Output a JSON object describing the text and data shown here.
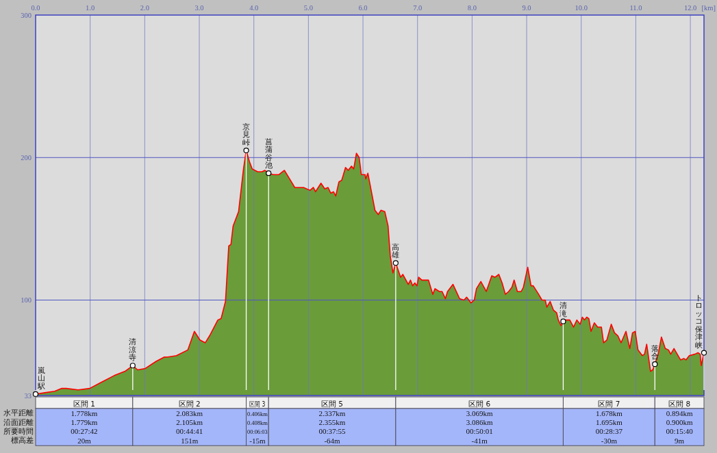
{
  "chart_data": {
    "type": "area",
    "xlabel": "[km]",
    "xlim": [
      0,
      12.25
    ],
    "ylim": [
      33,
      300
    ],
    "xticks": [
      {
        "value": 0,
        "label": "0.0"
      },
      {
        "value": 1,
        "label": "1.0"
      },
      {
        "value": 2,
        "label": "2.0"
      },
      {
        "value": 3,
        "label": "3.0"
      },
      {
        "value": 4,
        "label": "4.0"
      },
      {
        "value": 5,
        "label": "5.0"
      },
      {
        "value": 6,
        "label": "6.0"
      },
      {
        "value": 7,
        "label": "7.0"
      },
      {
        "value": 8,
        "label": "8.0"
      },
      {
        "value": 9,
        "label": "9.0"
      },
      {
        "value": 10,
        "label": "10.0"
      },
      {
        "value": 11,
        "label": "11.0"
      },
      {
        "value": 12,
        "label": "12.0"
      }
    ],
    "yticks": [
      33,
      100,
      200,
      300
    ],
    "grid": true,
    "x": [
      0,
      0.17,
      0.35,
      0.48,
      0.56,
      0.78,
      0.99,
      1.19,
      1.44,
      1.64,
      1.78,
      1.87,
      2.01,
      2.21,
      2.36,
      2.42,
      2.58,
      2.79,
      2.91,
      3.01,
      3.11,
      3.19,
      3.34,
      3.4,
      3.48,
      3.54,
      3.58,
      3.62,
      3.72,
      3.81,
      3.86,
      3.92,
      3.97,
      4.07,
      4.15,
      4.2,
      4.27,
      4.36,
      4.46,
      4.56,
      4.64,
      4.75,
      4.91,
      5.03,
      5.09,
      5.13,
      5.23,
      5.3,
      5.36,
      5.41,
      5.46,
      5.5,
      5.56,
      5.61,
      5.68,
      5.73,
      5.79,
      5.83,
      5.88,
      5.93,
      5.97,
      6.04,
      6.05,
      6.09,
      6.16,
      6.22,
      6.28,
      6.33,
      6.4,
      6.46,
      6.5,
      6.55,
      6.6,
      6.69,
      6.73,
      6.83,
      6.87,
      6.91,
      6.95,
      6.99,
      7.02,
      7.08,
      7.2,
      7.28,
      7.32,
      7.4,
      7.45,
      7.51,
      7.55,
      7.65,
      7.77,
      7.85,
      7.9,
      7.98,
      8.04,
      8.08,
      8.16,
      8.26,
      8.36,
      8.42,
      8.49,
      8.55,
      8.61,
      8.67,
      8.73,
      8.77,
      8.83,
      8.9,
      8.94,
      9.02,
      9.08,
      9.12,
      9.22,
      9.28,
      9.34,
      9.37,
      9.43,
      9.49,
      9.55,
      9.58,
      9.63,
      9.67,
      9.71,
      9.79,
      9.86,
      9.92,
      9.98,
      10.02,
      10.06,
      10.1,
      10.14,
      10.18,
      10.24,
      10.3,
      10.37,
      10.41,
      10.47,
      10.55,
      10.61,
      10.67,
      10.73,
      10.82,
      10.89,
      10.94,
      10.99,
      11.04,
      11.12,
      11.16,
      11.2,
      11.27,
      11.31,
      11.35,
      11.41,
      11.47,
      11.54,
      11.6,
      11.64,
      11.7,
      11.76,
      11.82,
      11.88,
      11.92,
      11.98,
      12.08,
      12.14,
      12.18,
      12.2,
      12.25
    ],
    "series": [
      {
        "color": "#6a9c3a",
        "values": [
          34,
          35,
          36,
          38,
          38,
          37,
          38,
          42,
          47,
          50,
          54,
          51,
          52,
          57,
          60,
          60,
          61,
          65,
          78,
          72,
          70,
          75,
          86,
          87,
          99,
          138,
          139,
          152,
          162,
          192,
          205,
          197,
          192,
          190,
          190,
          191,
          189,
          188,
          188,
          191,
          186,
          179,
          179,
          177,
          179,
          176,
          182,
          178,
          179,
          175,
          176,
          173,
          183,
          184,
          193,
          191,
          194,
          192,
          203,
          200,
          188,
          188,
          185,
          189,
          175,
          163,
          160,
          163,
          162,
          152,
          131,
          119,
          126,
          116,
          118,
          111,
          114,
          110,
          112,
          110,
          116,
          114,
          114,
          104,
          108,
          106,
          106,
          101,
          106,
          111,
          101,
          100,
          102,
          98,
          100,
          108,
          113,
          106,
          117,
          116,
          118,
          112,
          104,
          106,
          109,
          114,
          106,
          106,
          109,
          123,
          110,
          110,
          104,
          100,
          100,
          95,
          99,
          93,
          91,
          86,
          82,
          85,
          86,
          86,
          81,
          86,
          83,
          88,
          86,
          88,
          87,
          78,
          84,
          81,
          81,
          70,
          72,
          83,
          77,
          75,
          70,
          78,
          66,
          77,
          78,
          65,
          61,
          62,
          69,
          50,
          51,
          55,
          62,
          74,
          66,
          65,
          62,
          66,
          62,
          58,
          59,
          58,
          61,
          62,
          63,
          62,
          54,
          63
        ]
      },
      {
        "type": "line",
        "color": "#ff0000",
        "values": [
          34,
          35,
          36,
          38,
          38,
          37,
          38,
          42,
          47,
          50,
          54,
          51,
          52,
          57,
          60,
          60,
          61,
          65,
          78,
          72,
          70,
          75,
          86,
          87,
          99,
          138,
          139,
          152,
          162,
          192,
          205,
          197,
          192,
          190,
          190,
          191,
          189,
          188,
          188,
          191,
          186,
          179,
          179,
          177,
          179,
          176,
          182,
          178,
          179,
          175,
          176,
          173,
          183,
          184,
          193,
          191,
          194,
          192,
          203,
          200,
          188,
          188,
          185,
          189,
          175,
          163,
          160,
          163,
          162,
          152,
          131,
          119,
          126,
          116,
          118,
          111,
          114,
          110,
          112,
          110,
          116,
          114,
          114,
          104,
          108,
          106,
          106,
          101,
          106,
          111,
          101,
          100,
          102,
          98,
          100,
          108,
          113,
          106,
          117,
          116,
          118,
          112,
          104,
          106,
          109,
          114,
          106,
          106,
          109,
          123,
          110,
          110,
          104,
          100,
          100,
          95,
          99,
          93,
          91,
          86,
          82,
          85,
          86,
          86,
          81,
          86,
          83,
          88,
          86,
          88,
          87,
          78,
          84,
          81,
          81,
          70,
          72,
          83,
          77,
          75,
          70,
          78,
          66,
          77,
          78,
          65,
          61,
          62,
          69,
          50,
          51,
          55,
          62,
          74,
          66,
          65,
          62,
          66,
          62,
          58,
          59,
          58,
          61,
          62,
          63,
          62,
          54,
          63
        ]
      }
    ],
    "annotations": [
      {
        "text": "嵐山駅",
        "x": 0,
        "y": 34
      },
      {
        "text": "清涼寺",
        "x": 1.78,
        "y": 54
      },
      {
        "text": "京見峠",
        "x": 3.86,
        "y": 205
      },
      {
        "text": "菖蒲谷池",
        "x": 4.27,
        "y": 189
      },
      {
        "text": "高雄",
        "x": 6.6,
        "y": 126
      },
      {
        "text": "清滝",
        "x": 9.67,
        "y": 85
      },
      {
        "text": "落合",
        "x": 11.35,
        "y": 55
      },
      {
        "text": "トロッコ保津峡",
        "x": 12.25,
        "y": 63
      },
      "水平距離",
      "沿面距離",
      "所要時間",
      "標高差",
      "区間 1",
      "1.778km",
      "1.779km",
      "00:27:42",
      "20m",
      "区間 2",
      "2.083km",
      "2.105km",
      "00:44:41",
      "151m",
      "区間 3",
      "0.406km",
      "0.408km",
      "00:06:03",
      "-15m",
      "区間 5",
      "2.337km",
      "2.355km",
      "00:37:55",
      "-64m",
      "区間 6",
      "3.069km",
      "3.086km",
      "00:50:01",
      "-41m",
      "区間 7",
      "1.678km",
      "1.695km",
      "00:28:37",
      "-30m",
      "区間 8",
      "0.894km",
      "0.900km",
      "00:15:40",
      "9m"
    ]
  }
}
